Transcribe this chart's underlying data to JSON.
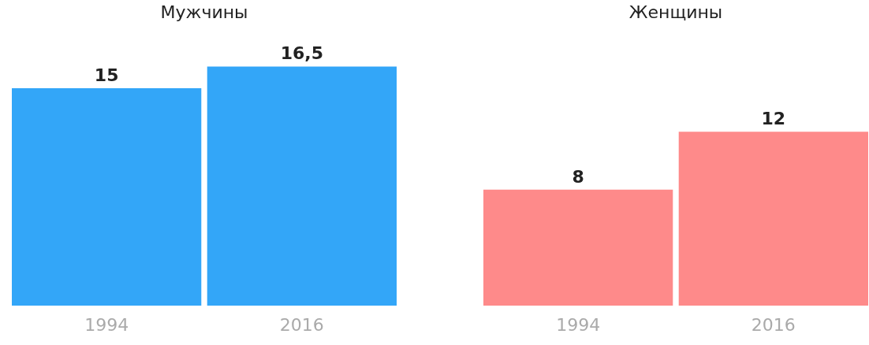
{
  "chart_data": [
    {
      "type": "bar",
      "title": "Мужчины",
      "categories": [
        "1994",
        "2016"
      ],
      "values": [
        15,
        16.5
      ],
      "value_labels": [
        "15",
        "16,5"
      ],
      "color": "#33a6f8",
      "grid": false
    },
    {
      "type": "bar",
      "title": "Женщины",
      "categories": [
        "1994",
        "2016"
      ],
      "values": [
        8,
        12
      ],
      "value_labels": [
        "8",
        "12"
      ],
      "color": "#fe8a8a",
      "grid": false
    }
  ]
}
